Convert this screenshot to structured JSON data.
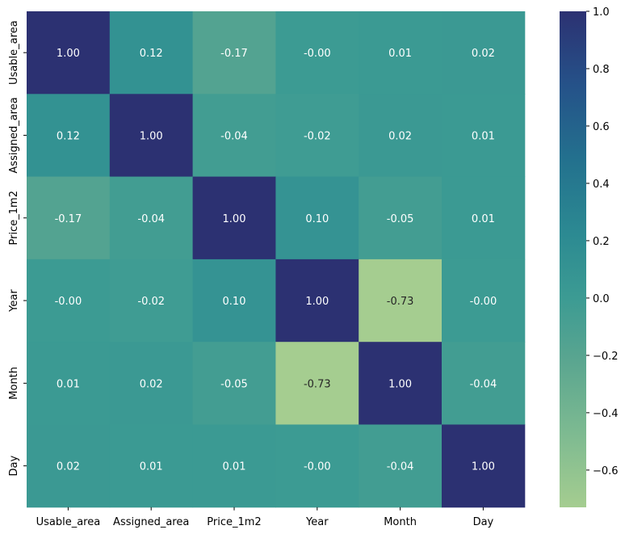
{
  "chart_data": {
    "type": "heatmap",
    "title": "",
    "xlabel": "",
    "ylabel": "",
    "x_categories": [
      "Usable_area",
      "Assigned_area",
      "Price_1m2",
      "Year",
      "Month",
      "Day"
    ],
    "y_categories": [
      "Usable_area",
      "Assigned_area",
      "Price_1m2",
      "Year",
      "Month",
      "Day"
    ],
    "values": [
      [
        1.0,
        0.12,
        -0.17,
        -0.0,
        0.01,
        0.02
      ],
      [
        0.12,
        1.0,
        -0.04,
        -0.02,
        0.02,
        0.01
      ],
      [
        -0.17,
        -0.04,
        1.0,
        0.1,
        -0.05,
        0.01
      ],
      [
        -0.0,
        -0.02,
        0.1,
        1.0,
        -0.73,
        -0.0
      ],
      [
        0.01,
        0.02,
        -0.05,
        -0.73,
        1.0,
        -0.04
      ],
      [
        0.02,
        0.01,
        0.01,
        -0.0,
        -0.04,
        1.0
      ]
    ],
    "value_labels": [
      [
        "1.00",
        "0.12",
        "-0.17",
        "-0.00",
        "0.01",
        "0.02"
      ],
      [
        "0.12",
        "1.00",
        "-0.04",
        "-0.02",
        "0.02",
        "0.01"
      ],
      [
        "-0.17",
        "-0.04",
        "1.00",
        "0.10",
        "-0.05",
        "0.01"
      ],
      [
        "-0.00",
        "-0.02",
        "0.10",
        "1.00",
        "-0.73",
        "-0.00"
      ],
      [
        "0.01",
        "0.02",
        "-0.05",
        "-0.73",
        "1.00",
        "-0.04"
      ],
      [
        "0.02",
        "0.01",
        "0.01",
        "-0.00",
        "-0.04",
        "1.00"
      ]
    ],
    "colormap": "crest",
    "color_range": [
      -0.73,
      1.0
    ],
    "colorbar_ticks": [
      1.0,
      0.8,
      0.6,
      0.4,
      0.2,
      0.0,
      -0.2,
      -0.4,
      -0.6
    ],
    "colorbar_tick_labels": [
      "1.0",
      "0.8",
      "0.6",
      "0.4",
      "0.2",
      "0.0",
      "−0.2",
      "−0.4",
      "−0.6"
    ],
    "colorbar_position": "right",
    "grid": false
  }
}
